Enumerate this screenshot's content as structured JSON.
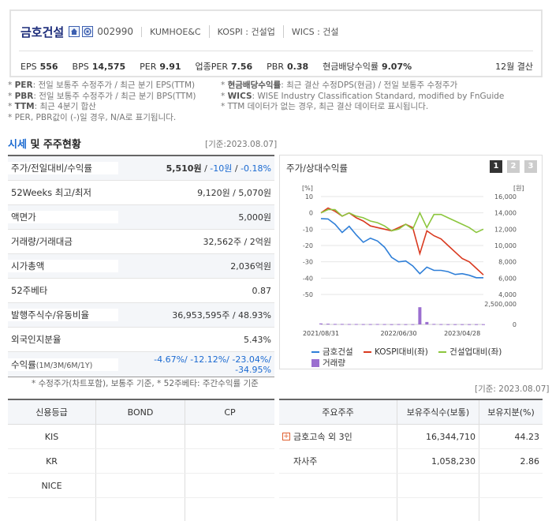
{
  "company": {
    "name": "금호건설",
    "code": "002990",
    "english_name": "KUMHOE&C",
    "market": "KOSPI : 건설업",
    "wics": "WICS : 건설",
    "icons": [
      "home-icon",
      "company-info-icon"
    ]
  },
  "indicators": [
    {
      "label": "EPS",
      "value": "556"
    },
    {
      "label": "BPS",
      "value": "14,575"
    },
    {
      "label": "PER",
      "value": "9.91"
    },
    {
      "label": "업종PER",
      "value": "7.56"
    },
    {
      "label": "PBR",
      "value": "0.38"
    },
    {
      "label": "현금배당수익률",
      "value": "9.07%"
    }
  ],
  "settlement": "12월 결산",
  "notes_left": [
    {
      "key": "PER",
      "text": ": 전일 보통주 수정주가 / 최근 분기 EPS(TTM)"
    },
    {
      "key": "PBR",
      "text": ": 전일 보통주 수정주가 / 최근 분기 BPS(TTM)"
    },
    {
      "key": "TTM",
      "text": ": 최근 4분기 합산"
    },
    {
      "key": "",
      "text": "PER, PBR값이 (-)일 경우, N/A로 표기됩니다."
    }
  ],
  "notes_right": [
    {
      "key": "현금배당수익률",
      "text": ": 최근 결산 수정DPS(현금) / 전일 보통주 수정주가"
    },
    {
      "key": "WICS",
      "text": ": WISE Industry Classification Standard, modified by FnGuide"
    },
    {
      "key": "",
      "text": "TTM 데이터가 없는 경우, 최근 결산 데이터로 표시됩니다."
    }
  ],
  "section": {
    "title_em": "시세",
    "title_rest": " 및 주주현황",
    "base_date": "[기준:2023.08.07]"
  },
  "price_table": {
    "price_row": {
      "label": "주가/전일대비/수익률",
      "price": "5,510원",
      "change": "-10원",
      "rate": "-0.18%"
    },
    "rows": [
      {
        "label": "52Weeks 최고/최저",
        "value": "9,120원 / 5,070원"
      },
      {
        "label": "액면가",
        "value": "5,000원"
      },
      {
        "label": "거래량/거래대금",
        "value": "32,562주 / 2억원"
      },
      {
        "label": "시가총액",
        "value": "2,036억원"
      },
      {
        "label": "52주베타",
        "value": "0.87"
      },
      {
        "label": "발행주식수/유동비율",
        "value": "36,953,595주 / 48.93%"
      },
      {
        "label": "외국인지분율",
        "value": "5.43%"
      }
    ],
    "returns_row": {
      "label": "수익률",
      "sub": "(1M/3M/6M/1Y)",
      "value": "-4.67%/ -12.12%/ -23.04%/ -34.95%"
    },
    "footnote": "* 수정주가(차트포함), 보통주 기준, * 52주베타: 주간수익률 기준"
  },
  "chart_panel": {
    "title": "주가/상대수익률",
    "tabs": [
      "1",
      "2",
      "3"
    ],
    "active_tab": 0
  },
  "chart_data": {
    "type": "line",
    "left_axis_unit": "[%]",
    "right_axis_unit": "[원]",
    "ylim_left": [
      -50,
      10
    ],
    "left_ticks": [
      10,
      0,
      -10,
      -20,
      -30,
      -40,
      -50
    ],
    "ylim_right": [
      4000,
      16000
    ],
    "right_ticks": [
      "16,000",
      "14,000",
      "12,000",
      "10,000",
      "8,000",
      "6,000",
      "4,000"
    ],
    "volume_ticks": [
      "2,500,000",
      "0"
    ],
    "ylim_volume": [
      0,
      2500000
    ],
    "x_labels": [
      "2021/08/31",
      "2022/06/30",
      "2023/04/28"
    ],
    "grid": true,
    "legend_position": "bottom",
    "series": [
      {
        "name": "금호건설",
        "axis": "right",
        "color": "#2f7fd8",
        "values": [
          13300,
          13250,
          12600,
          11600,
          12350,
          11300,
          10400,
          10900,
          10550,
          9800,
          8550,
          8000,
          8100,
          7500,
          6550,
          7350,
          6950,
          6950,
          6800,
          6450,
          6550,
          6350,
          6050,
          6050
        ]
      },
      {
        "name": "KOSPI대비(좌)",
        "axis": "left",
        "color": "#d9391f",
        "values": [
          0,
          3,
          1,
          -2,
          0,
          -3,
          -5,
          -8,
          -9,
          -10,
          -11,
          -9,
          -7,
          -9,
          -25,
          -11,
          -14,
          -16,
          -20,
          -24,
          -28,
          -30,
          -34,
          -38
        ]
      },
      {
        "name": "건설업대비(좌)",
        "axis": "left",
        "color": "#8cc63e",
        "values": [
          0,
          2,
          2,
          -2,
          0,
          -2,
          -3,
          -5,
          -6,
          -8,
          -11,
          -10,
          -7,
          -10,
          0,
          -9,
          -1,
          -1,
          -3,
          -5,
          -7,
          -9,
          -12,
          -10
        ]
      },
      {
        "name": "거래량",
        "axis": "volume",
        "color": "#9b6fd0",
        "type": "bar",
        "values": [
          120000,
          90000,
          60000,
          60000,
          50000,
          50000,
          40000,
          40000,
          50000,
          40000,
          30000,
          40000,
          30000,
          30000,
          2100000,
          300000,
          60000,
          40000,
          30000,
          30000,
          30000,
          30000,
          30000,
          30000
        ]
      }
    ]
  },
  "base_date2": "[기준: 2023.08.07]",
  "credit_table": {
    "headers": [
      "신용등급",
      "BOND",
      "CP"
    ],
    "rows": [
      [
        "KIS",
        "",
        ""
      ],
      [
        "KR",
        "",
        ""
      ],
      [
        "NICE",
        "",
        ""
      ],
      [
        "",
        "",
        ""
      ]
    ]
  },
  "shareholder_table": {
    "headers": [
      "주요주주",
      "보유주식수(보통)",
      "보유지분(%)"
    ],
    "rows": [
      {
        "name": "금호고속 외 3인",
        "shares": "16,344,710",
        "ratio": "44.23",
        "expandable": true
      },
      {
        "name": "자사주",
        "shares": "1,058,230",
        "ratio": "2.86",
        "expandable": false
      },
      {
        "name": "",
        "shares": "",
        "ratio": "",
        "expandable": false
      },
      {
        "name": "",
        "shares": "",
        "ratio": "",
        "expandable": false
      }
    ]
  }
}
